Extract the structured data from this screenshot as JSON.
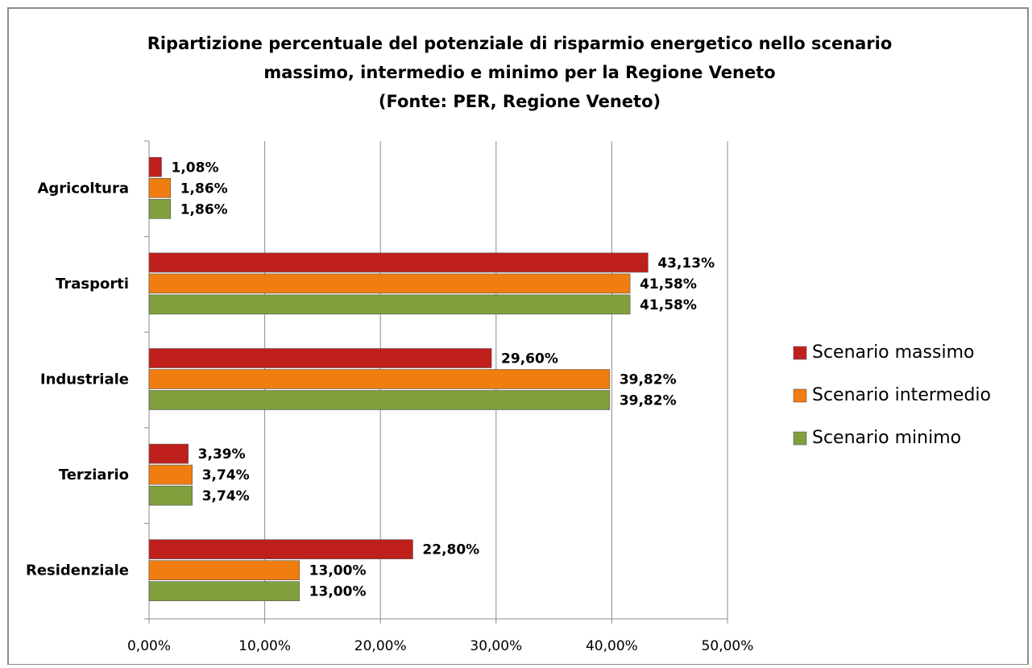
{
  "chart_data": {
    "type": "hbar",
    "title": [
      "Ripartizione percentuale del potenziale di risparmio energetico nello scenario",
      "massimo, intermedio e minimo per la Regione Veneto",
      "(Fonte: PER, Regione Veneto)"
    ],
    "categories": [
      "Agricoltura",
      "Trasporti",
      "Industriale",
      "Terziario",
      "Residenziale"
    ],
    "series": [
      {
        "name": "Scenario massimo",
        "color": "#c0201c",
        "values": [
          1.08,
          43.13,
          29.6,
          3.39,
          22.8
        ],
        "value_labels": [
          "1,08%",
          "43,13%",
          "29,60%",
          "3,39%",
          "22,80%"
        ]
      },
      {
        "name": "Scenario intermedio",
        "color": "#f07d10",
        "values": [
          1.86,
          41.58,
          39.82,
          3.74,
          13.0
        ],
        "value_labels": [
          "1,86%",
          "41,58%",
          "39,82%",
          "3,74%",
          "13,00%"
        ]
      },
      {
        "name": "Scenario minimo",
        "color": "#7fa03c",
        "values": [
          1.86,
          41.58,
          39.82,
          3.74,
          13.0
        ],
        "value_labels": [
          "1,86%",
          "41,58%",
          "39,82%",
          "3,74%",
          "13,00%"
        ]
      }
    ],
    "xlim": [
      0,
      50
    ],
    "xticks": [
      {
        "value": 0,
        "label": "0,00%"
      },
      {
        "value": 10,
        "label": "10,00%"
      },
      {
        "value": 20,
        "label": "20,00%"
      },
      {
        "value": 30,
        "label": "30,00%"
      },
      {
        "value": 40,
        "label": "40,00%"
      },
      {
        "value": 50,
        "label": "50,00%"
      }
    ],
    "grid": true,
    "legend": "right"
  }
}
